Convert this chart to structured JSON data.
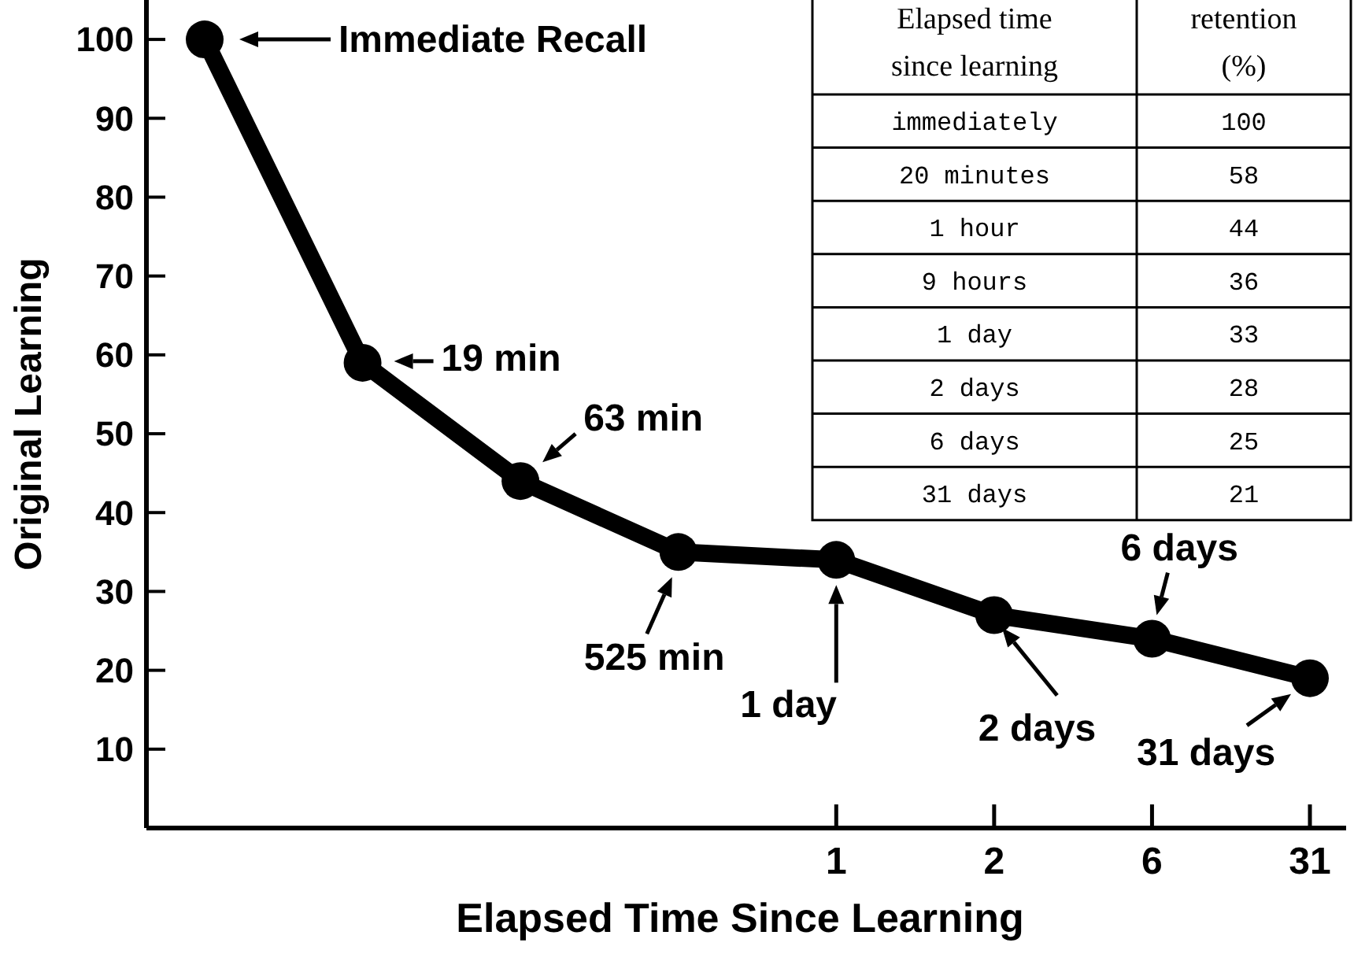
{
  "chart_data": [
    {
      "type": "line",
      "ylabel": "Original Learning",
      "xlabel": "Elapsed Time Since Learning",
      "categories": [
        null,
        null,
        null,
        null,
        "1",
        "2",
        "6",
        "31"
      ],
      "series": [
        {
          "color": "#000000",
          "values": [
            100,
            59,
            44,
            35,
            34,
            27,
            24,
            19
          ]
        }
      ],
      "ylim": [
        0,
        105
      ],
      "yticks": [
        10,
        20,
        30,
        40,
        50,
        60,
        70,
        80,
        90,
        100
      ],
      "grid": false,
      "marker": "circle",
      "line_style": "solid",
      "annotations": [
        "Immediate Recall",
        "19 min",
        "63 min",
        "525 min",
        "1 day",
        "2 days",
        "6 days",
        "31 days"
      ]
    },
    {
      "type": "other",
      "xlabel": "Elapsed time since learning",
      "ylabel": "retention (%)",
      "categories": [
        "immediately",
        "20 minutes",
        "1 hour",
        "9 hours",
        "1 day",
        "2 days",
        "6 days",
        "31 days"
      ],
      "values": [
        100,
        58,
        44,
        36,
        33,
        28,
        25,
        21
      ],
      "data_labels": true
    }
  ]
}
